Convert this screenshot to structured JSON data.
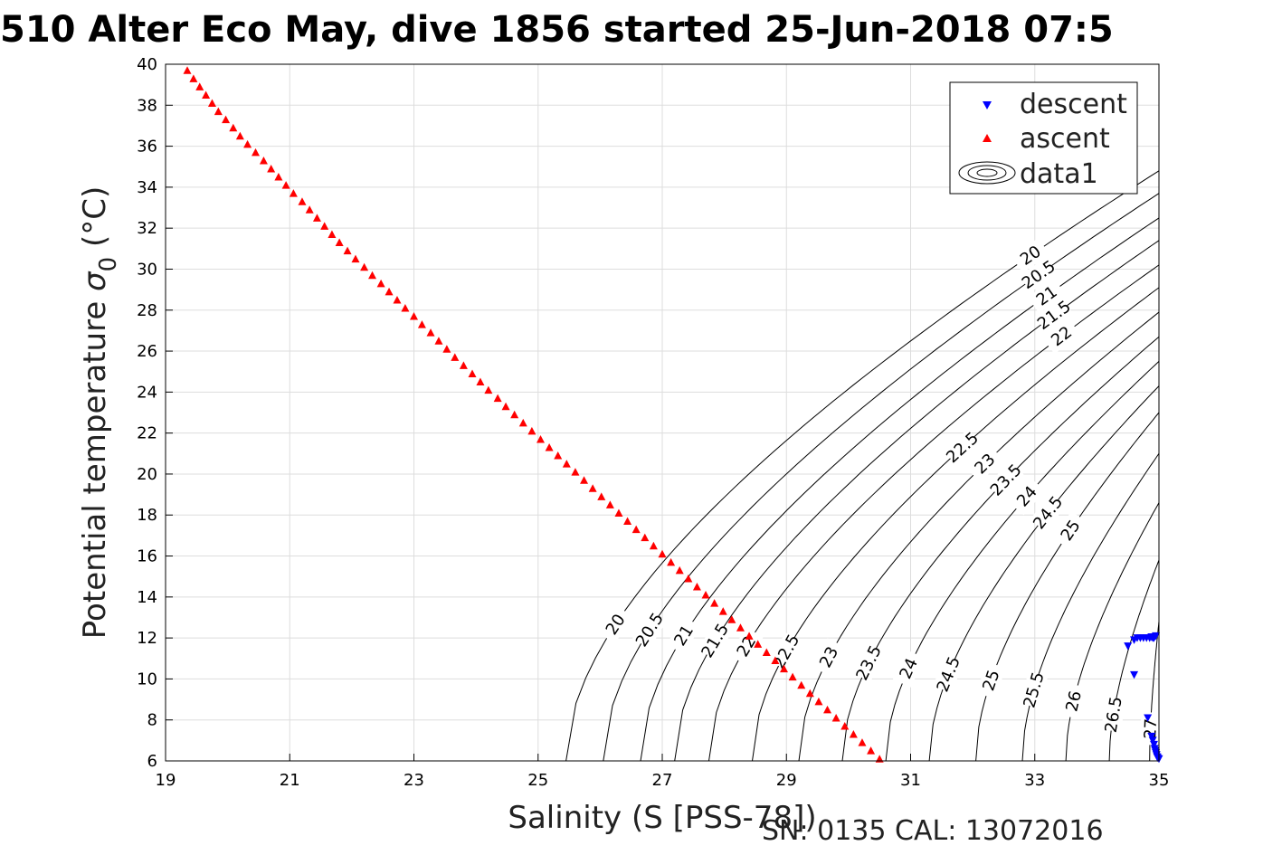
{
  "chart_data": {
    "type": "scatter",
    "title": "510 Alter Eco May, dive 1856 started 25-Jun-2018 07:5",
    "xlabel": "Salinity (S [PSS-78])",
    "ylabel_main": "Potential temperature ",
    "ylabel_sigma": "σ",
    "ylabel_subscript": "0",
    "ylabel_unit": " (°C)",
    "footer": "SN: 0135  CAL: 13072016",
    "xlim": [
      19,
      35
    ],
    "ylim": [
      6,
      40
    ],
    "x_ticks": [
      19,
      21,
      23,
      25,
      27,
      29,
      31,
      33,
      35
    ],
    "y_ticks": [
      6,
      8,
      10,
      12,
      14,
      16,
      18,
      20,
      22,
      24,
      26,
      28,
      30,
      32,
      34,
      36,
      38,
      40
    ],
    "grid": true,
    "legend_position": "top-right",
    "legend": [
      {
        "label": "descent",
        "marker": "triangle-down",
        "color": "#0000ff"
      },
      {
        "label": "ascent",
        "marker": "triangle-up",
        "color": "#ff0000"
      },
      {
        "label": "data1",
        "marker": "contour",
        "color": "#000000"
      }
    ],
    "series": [
      {
        "name": "descent",
        "marker": "triangle-down",
        "color": "#0000ff",
        "points": [
          [
            34.5,
            11.6
          ],
          [
            34.6,
            11.9
          ],
          [
            34.65,
            12.0
          ],
          [
            34.7,
            12.0
          ],
          [
            34.75,
            12.0
          ],
          [
            34.8,
            12.0
          ],
          [
            34.85,
            12.0
          ],
          [
            34.9,
            12.0
          ],
          [
            34.95,
            12.1
          ],
          [
            34.92,
            12.0
          ],
          [
            34.88,
            12.05
          ],
          [
            34.6,
            10.2
          ],
          [
            34.82,
            8.1
          ],
          [
            34.88,
            7.2
          ],
          [
            34.9,
            7.0
          ],
          [
            34.92,
            6.8
          ],
          [
            34.93,
            6.6
          ],
          [
            34.94,
            6.5
          ],
          [
            34.95,
            6.4
          ],
          [
            34.96,
            6.3
          ],
          [
            34.97,
            6.2
          ],
          [
            34.98,
            6.15
          ],
          [
            35.0,
            6.1
          ]
        ]
      },
      {
        "name": "ascent",
        "marker": "triangle-up",
        "color": "#ff0000",
        "points": [
          [
            19.35,
            39.7
          ],
          [
            19.45,
            39.3
          ],
          [
            19.55,
            38.9
          ],
          [
            19.65,
            38.5
          ],
          [
            19.75,
            38.1
          ],
          [
            19.85,
            37.7
          ],
          [
            19.97,
            37.3
          ],
          [
            20.09,
            36.9
          ],
          [
            20.2,
            36.5
          ],
          [
            20.32,
            36.1
          ],
          [
            20.45,
            35.7
          ],
          [
            20.58,
            35.3
          ],
          [
            20.7,
            34.9
          ],
          [
            20.82,
            34.5
          ],
          [
            20.94,
            34.1
          ],
          [
            21.06,
            33.7
          ],
          [
            21.2,
            33.3
          ],
          [
            21.32,
            32.9
          ],
          [
            21.44,
            32.5
          ],
          [
            21.56,
            32.1
          ],
          [
            21.68,
            31.7
          ],
          [
            21.8,
            31.3
          ],
          [
            21.93,
            30.9
          ],
          [
            22.06,
            30.5
          ],
          [
            22.2,
            30.1
          ],
          [
            22.33,
            29.7
          ],
          [
            22.47,
            29.3
          ],
          [
            22.6,
            28.9
          ],
          [
            22.73,
            28.5
          ],
          [
            22.86,
            28.1
          ],
          [
            23.0,
            27.7
          ],
          [
            23.13,
            27.3
          ],
          [
            23.27,
            26.9
          ],
          [
            23.4,
            26.5
          ],
          [
            23.53,
            26.1
          ],
          [
            23.66,
            25.7
          ],
          [
            23.8,
            25.3
          ],
          [
            23.94,
            24.9
          ],
          [
            24.07,
            24.5
          ],
          [
            24.2,
            24.1
          ],
          [
            24.35,
            23.7
          ],
          [
            24.48,
            23.3
          ],
          [
            24.62,
            22.9
          ],
          [
            24.76,
            22.5
          ],
          [
            24.9,
            22.1
          ],
          [
            25.04,
            21.7
          ],
          [
            25.18,
            21.3
          ],
          [
            25.32,
            20.9
          ],
          [
            25.46,
            20.5
          ],
          [
            25.6,
            20.1
          ],
          [
            25.74,
            19.7
          ],
          [
            25.88,
            19.3
          ],
          [
            26.02,
            18.9
          ],
          [
            26.16,
            18.5
          ],
          [
            26.3,
            18.1
          ],
          [
            26.44,
            17.7
          ],
          [
            26.58,
            17.3
          ],
          [
            26.72,
            16.9
          ],
          [
            26.86,
            16.5
          ],
          [
            27.0,
            16.1
          ],
          [
            27.14,
            15.7
          ],
          [
            27.28,
            15.3
          ],
          [
            27.42,
            14.9
          ],
          [
            27.56,
            14.5
          ],
          [
            27.7,
            14.1
          ],
          [
            27.84,
            13.7
          ],
          [
            27.98,
            13.3
          ],
          [
            28.12,
            12.9
          ],
          [
            28.26,
            12.5
          ],
          [
            28.4,
            12.1
          ],
          [
            28.54,
            11.7
          ],
          [
            28.68,
            11.3
          ],
          [
            28.82,
            10.9
          ],
          [
            28.96,
            10.5
          ],
          [
            29.1,
            10.1
          ],
          [
            29.24,
            9.7
          ],
          [
            29.38,
            9.3
          ],
          [
            29.52,
            8.9
          ],
          [
            29.66,
            8.5
          ],
          [
            29.8,
            8.1
          ],
          [
            29.94,
            7.7
          ],
          [
            30.08,
            7.3
          ],
          [
            30.22,
            6.9
          ],
          [
            30.36,
            6.5
          ],
          [
            30.5,
            6.1
          ]
        ]
      }
    ],
    "sigma_contours_upper_labels": [
      "20",
      "20.5",
      "21",
      "21.5",
      "22",
      "22.5",
      "23",
      "23.5",
      "24",
      "24.5",
      "25"
    ],
    "sigma_contours_lower_labels": [
      "20",
      "20.5",
      "21",
      "21.5",
      "22",
      "22.5",
      "23",
      "23.5",
      "24",
      "24.5",
      "25",
      "25.5",
      "26",
      "26.5",
      "27"
    ]
  }
}
